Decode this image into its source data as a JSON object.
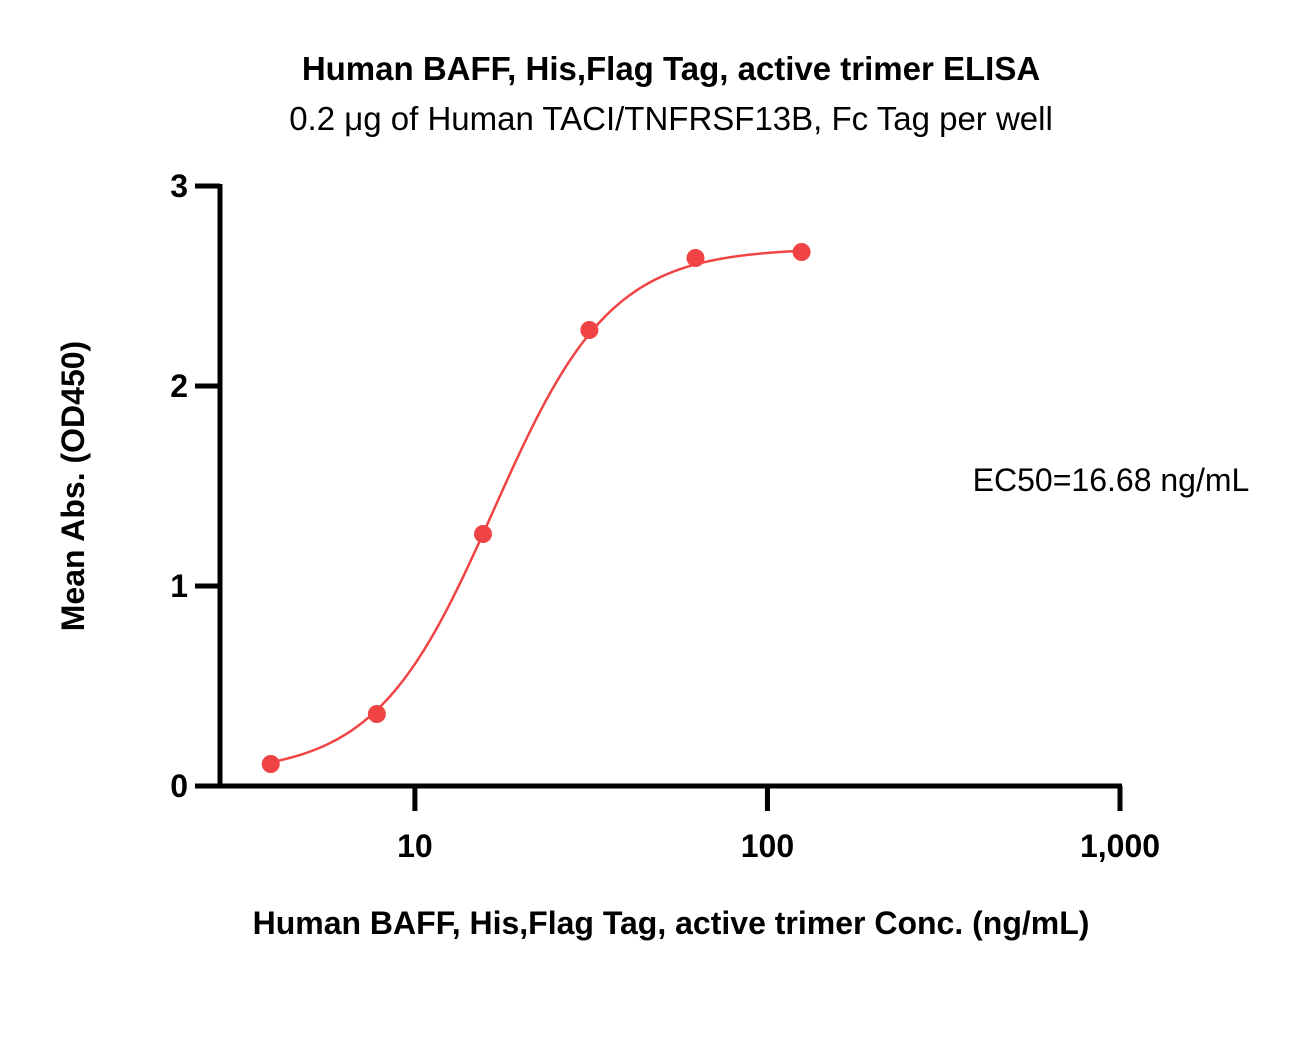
{
  "chart_data": {
    "type": "scatter",
    "title": "Human BAFF, His,Flag Tag, active trimer ELISA",
    "subtitle": "0.2 μg of Human TACI/TNFRSF13B, Fc Tag per well",
    "xlabel": "Human BAFF, His,Flag Tag, active trimer Conc. (ng/mL)",
    "ylabel": "Mean Abs. (OD450)",
    "x_scale": "log",
    "xlim": [
      2.8,
      1000
    ],
    "ylim": [
      0,
      3
    ],
    "x_ticks": [
      {
        "value": 10,
        "label": "10"
      },
      {
        "value": 100,
        "label": "100"
      },
      {
        "value": 1000,
        "label": "1,000"
      }
    ],
    "y_ticks": [
      {
        "value": 0,
        "label": "0"
      },
      {
        "value": 1,
        "label": "1"
      },
      {
        "value": 2,
        "label": "2"
      },
      {
        "value": 3,
        "label": "3"
      }
    ],
    "grid": false,
    "series": [
      {
        "color": "#f04444",
        "x": [
          3.9,
          7.8,
          15.6,
          31.25,
          62.5,
          125
        ],
        "y": [
          0.11,
          0.36,
          1.26,
          2.28,
          2.64,
          2.67
        ]
      }
    ],
    "fit": {
      "type": "4PL",
      "bottom": 0.06,
      "top": 2.69,
      "ec50": 16.68,
      "hill": 2.6
    },
    "annotations": [
      {
        "text": "EC50=16.68 ng/mL"
      }
    ]
  }
}
